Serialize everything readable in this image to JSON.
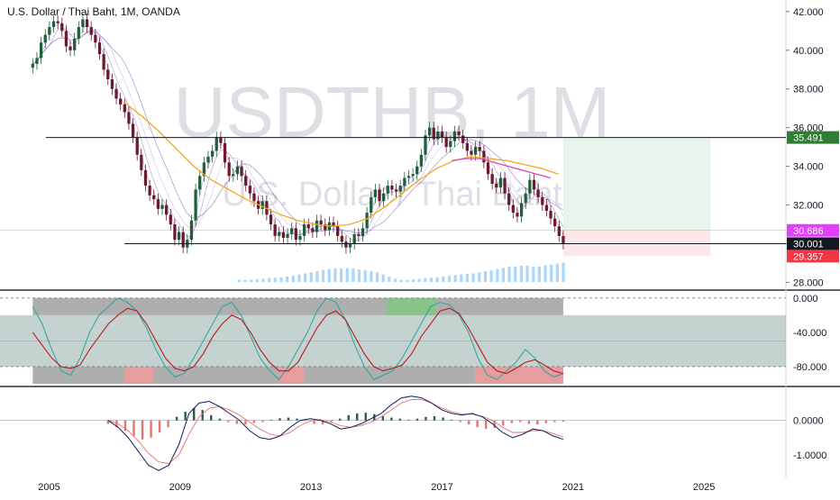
{
  "header": {
    "title": "U.S. Dollar / Thai Baht, 1M, OANDA"
  },
  "watermark": {
    "symbol": "USDTHB, 1M",
    "description": "U.S. Dollar / Thai Baht"
  },
  "colors": {
    "bull": "#1e5f3a",
    "bear": "#6b1a2e",
    "ema_orange": "#f5a623",
    "ema_pink": "#e040c0",
    "price_line": "#e040fb",
    "target_green": "#4caf50",
    "stop_red": "#f23645",
    "volume": "#64b5f6",
    "stoch_teal": "#26a69a",
    "stoch_red": "#b71c1c",
    "macd_line": "#131a5e",
    "macd_signal": "#e57373"
  },
  "chart_data": [
    {
      "type": "candlestick",
      "name": "main",
      "x_axis": {
        "ticks": [
          "2005",
          "2009",
          "2013",
          "2017",
          "2021",
          "2025"
        ],
        "range": [
          2003.5,
          2027.5
        ]
      },
      "y_axis": {
        "ticks": [
          "42.000",
          "40.000",
          "38.000",
          "36.000",
          "34.000",
          "32.000",
          "30.000",
          "28.000"
        ],
        "range": [
          27.6,
          42.6
        ]
      },
      "closes": [
        39.3,
        39.6,
        40.4,
        40.8,
        41.2,
        41.5,
        41.4,
        41.0,
        40.2,
        40.0,
        40.6,
        41.2,
        41.6,
        41.2,
        40.8,
        40.4,
        39.8,
        39.0,
        38.5,
        38.0,
        37.5,
        37.2,
        36.8,
        36.2,
        35.5,
        34.6,
        33.8,
        33.0,
        32.5,
        32.3,
        31.8,
        32.0,
        31.5,
        31.0,
        30.2,
        30.6,
        29.8,
        30.2,
        31.2,
        32.8,
        33.5,
        34.2,
        34.5,
        34.8,
        35.5,
        35.2,
        34.2,
        33.5,
        33.6,
        34.0,
        33.5,
        33.0,
        32.6,
        32.2,
        31.8,
        32.2,
        31.5,
        31.0,
        30.4,
        30.6,
        30.3,
        30.5,
        30.8,
        30.2,
        30.4,
        31.0,
        30.8,
        30.6,
        31.2,
        31.0,
        30.7,
        31.1,
        30.9,
        30.4,
        30.1,
        29.8,
        30.0,
        30.5,
        30.4,
        30.8,
        31.6,
        32.4,
        32.8,
        32.2,
        32.6,
        33.0,
        32.8,
        32.7,
        33.0,
        33.4,
        33.5,
        33.6,
        34.0,
        34.6,
        35.6,
        36.0,
        35.4,
        35.8,
        35.5,
        35.0,
        35.3,
        35.8,
        35.6,
        35.2,
        34.8,
        34.6,
        35.0,
        34.8,
        34.2,
        33.6,
        33.1,
        32.9,
        33.4,
        32.6,
        32.0,
        31.6,
        31.4,
        32.1,
        32.6,
        33.3,
        32.8,
        32.4,
        32.0,
        31.7,
        31.3,
        30.9,
        30.4,
        30.0
      ],
      "ema_orange": {
        "start": 2007.3,
        "values": [
          37.3,
          36.6,
          35.8,
          34.9,
          34.0,
          33.3,
          32.8,
          32.3,
          31.9,
          31.5,
          31.2,
          31.0,
          30.9,
          31.0,
          31.3,
          31.9,
          32.6,
          33.3,
          33.9,
          34.3,
          34.5,
          34.4,
          34.3,
          34.1,
          33.9,
          33.6
        ]
      },
      "ema_pink": {
        "start": 2017.3,
        "values": [
          34.3,
          34.4,
          34.4,
          34.2,
          34.0,
          33.8,
          33.6,
          33.4
        ]
      },
      "horizontal_levels": [
        {
          "price": 35.491,
          "from": 2004.9,
          "color": "#131722"
        },
        {
          "price": 30.001,
          "from": 2007.3,
          "color": "#131722"
        }
      ],
      "price_line": 30.686,
      "position_box": {
        "from": 2020.7,
        "to": 2025.2,
        "entry": 30.686,
        "target": 35.491,
        "stop": 29.357
      },
      "price_labels": [
        {
          "text": "35.491",
          "value": 35.491,
          "bg": "#2e7d32"
        },
        {
          "text": "30.686",
          "value": 30.686,
          "bg": "#e040fb"
        },
        {
          "text": "30.001",
          "value": 30.001,
          "bg": "#131722"
        },
        {
          "text": "29.357",
          "value": 29.357,
          "bg": "#f23645"
        }
      ],
      "volume": [
        0.1,
        0.1,
        0.1,
        0.12,
        0.15,
        0.18,
        0.2,
        0.22,
        0.25,
        0.3,
        0.35,
        0.4,
        0.45,
        0.5,
        0.55,
        0.6,
        0.62,
        0.63,
        0.64,
        0.62,
        0.58,
        0.55,
        0.5,
        0.45,
        0.35,
        0.25,
        0.15,
        0.1,
        0.1,
        0.12,
        0.15,
        0.18,
        0.2,
        0.22,
        0.25,
        0.28,
        0.32,
        0.35,
        0.38,
        0.4,
        0.45,
        0.5,
        0.55,
        0.6,
        0.65,
        0.7,
        0.72,
        0.75,
        0.75,
        0.7,
        0.72,
        0.78,
        0.8,
        0.85,
        0.9
      ]
    },
    {
      "type": "line",
      "name": "stochastic",
      "y_axis": {
        "ticks": [
          "0.000",
          "-40.000",
          "-80.000"
        ],
        "range": [
          -100,
          4
        ]
      },
      "band": [
        -20,
        -80
      ],
      "fast": [
        -10,
        -30,
        -60,
        -85,
        -90,
        -70,
        -40,
        -20,
        -10,
        0,
        -5,
        -15,
        -35,
        -60,
        -80,
        -92,
        -88,
        -70,
        -50,
        -30,
        -10,
        -5,
        -20,
        -45,
        -70,
        -85,
        -95,
        -80,
        -60,
        -40,
        -15,
        0,
        -5,
        -25,
        -55,
        -80,
        -95,
        -90,
        -85,
        -70,
        -50,
        -30,
        -10,
        -5,
        -8,
        -20,
        -40,
        -70,
        -90,
        -95,
        -85,
        -75,
        -60,
        -70,
        -85,
        -92,
        -88
      ],
      "slow": [
        -40,
        -55,
        -70,
        -80,
        -82,
        -78,
        -60,
        -45,
        -30,
        -20,
        -12,
        -15,
        -30,
        -50,
        -70,
        -82,
        -85,
        -80,
        -65,
        -45,
        -30,
        -20,
        -25,
        -40,
        -60,
        -75,
        -85,
        -85,
        -75,
        -55,
        -35,
        -20,
        -15,
        -25,
        -45,
        -65,
        -80,
        -85,
        -82,
        -78,
        -65,
        -45,
        -30,
        -15,
        -12,
        -18,
        -35,
        -55,
        -75,
        -85,
        -88,
        -82,
        -75,
        -72,
        -78,
        -85,
        -88
      ]
    },
    {
      "type": "histogram",
      "name": "macd",
      "y_axis": {
        "ticks": [
          "0.0000",
          "-1.0000"
        ],
        "range": [
          -1.65,
          0.9
        ]
      },
      "hist": [
        -0.1,
        -0.2,
        -0.3,
        -0.45,
        -0.55,
        -0.5,
        -0.35,
        -0.2,
        0.1,
        0.25,
        0.35,
        0.3,
        0.15,
        0.05,
        -0.05,
        -0.1,
        -0.12,
        -0.08,
        -0.05,
        0.02,
        0.06,
        0.08,
        0.05,
        -0.02,
        -0.1,
        -0.12,
        -0.06,
        0.05,
        0.15,
        0.2,
        0.22,
        0.18,
        0.12,
        0.08,
        0.05,
        0.02,
        0.05,
        0.1,
        0.12,
        0.08,
        0.02,
        -0.05,
        -0.12,
        -0.2,
        -0.25,
        -0.22,
        -0.15,
        -0.08,
        -0.05,
        -0.1,
        -0.12,
        -0.08,
        -0.05,
        -0.04
      ],
      "macd": [
        0.0,
        -0.2,
        -0.5,
        -0.9,
        -1.3,
        -1.45,
        -1.3,
        -0.7,
        0.2,
        0.5,
        0.55,
        0.4,
        0.2,
        0.0,
        -0.3,
        -0.5,
        -0.55,
        -0.45,
        -0.2,
        0.0,
        0.05,
        0.0,
        -0.1,
        -0.25,
        -0.2,
        -0.1,
        0.05,
        0.2,
        0.45,
        0.65,
        0.7,
        0.65,
        0.5,
        0.3,
        0.2,
        0.15,
        0.2,
        0.1,
        -0.1,
        -0.35,
        -0.5,
        -0.4,
        -0.25,
        -0.3,
        -0.45,
        -0.55
      ],
      "signal": [
        0.0,
        -0.1,
        -0.3,
        -0.6,
        -0.95,
        -1.2,
        -1.25,
        -1.0,
        -0.4,
        0.1,
        0.35,
        0.4,
        0.3,
        0.15,
        -0.05,
        -0.25,
        -0.4,
        -0.45,
        -0.35,
        -0.15,
        -0.02,
        0.02,
        -0.05,
        -0.15,
        -0.2,
        -0.15,
        -0.05,
        0.1,
        0.3,
        0.5,
        0.6,
        0.6,
        0.5,
        0.35,
        0.25,
        0.18,
        0.18,
        0.12,
        0.0,
        -0.2,
        -0.35,
        -0.35,
        -0.3,
        -0.3,
        -0.38,
        -0.48
      ]
    }
  ]
}
